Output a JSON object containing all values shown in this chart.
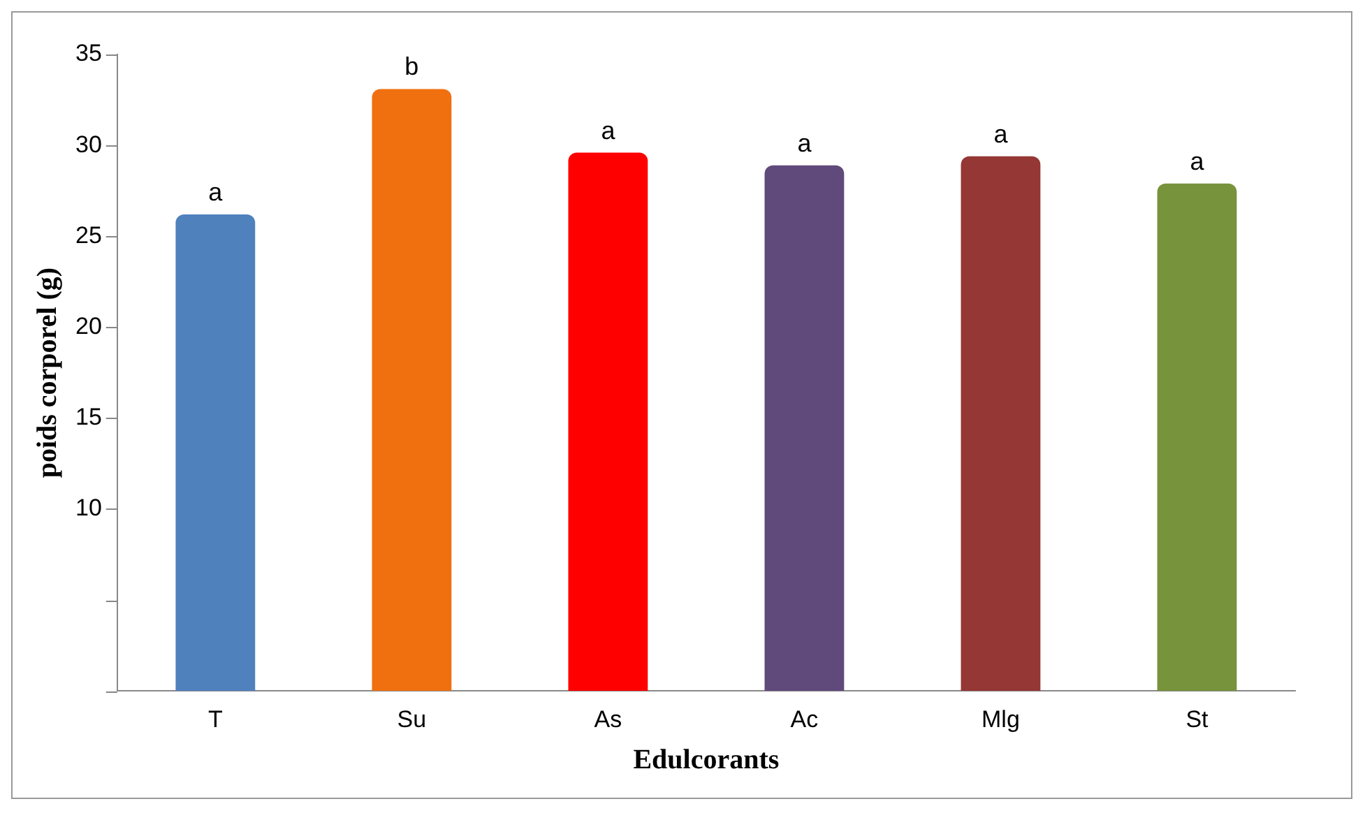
{
  "chart_data": {
    "type": "bar",
    "xlabel": "Edulcorants",
    "ylabel": "poids corporel (g)",
    "categories": [
      "T",
      "Su",
      "As",
      "Ac",
      "Mlg",
      "St"
    ],
    "values": [
      26.2,
      33.1,
      29.6,
      28.9,
      29.4,
      27.9
    ],
    "colors": [
      "#4f81bd",
      "#f07010",
      "#ff0000",
      "#604a7b",
      "#953735",
      "#77933c"
    ],
    "ylim": [
      0,
      35
    ],
    "yticks": [
      {
        "value": 0,
        "label": null
      },
      {
        "value": 5,
        "label": null
      },
      10,
      15,
      20,
      25,
      30,
      35
    ],
    "grid": false,
    "legend": false,
    "annotations": [
      {
        "text": "a",
        "x": "T",
        "y": 26.2
      },
      {
        "text": "b",
        "x": "Su",
        "y": 33.1
      },
      {
        "text": "a",
        "x": "As",
        "y": 29.6
      },
      {
        "text": "a",
        "x": "Ac",
        "y": 28.9
      },
      {
        "text": "a",
        "x": "Mlg",
        "y": 29.4
      },
      {
        "text": "a",
        "x": "St",
        "y": 27.9
      }
    ]
  }
}
